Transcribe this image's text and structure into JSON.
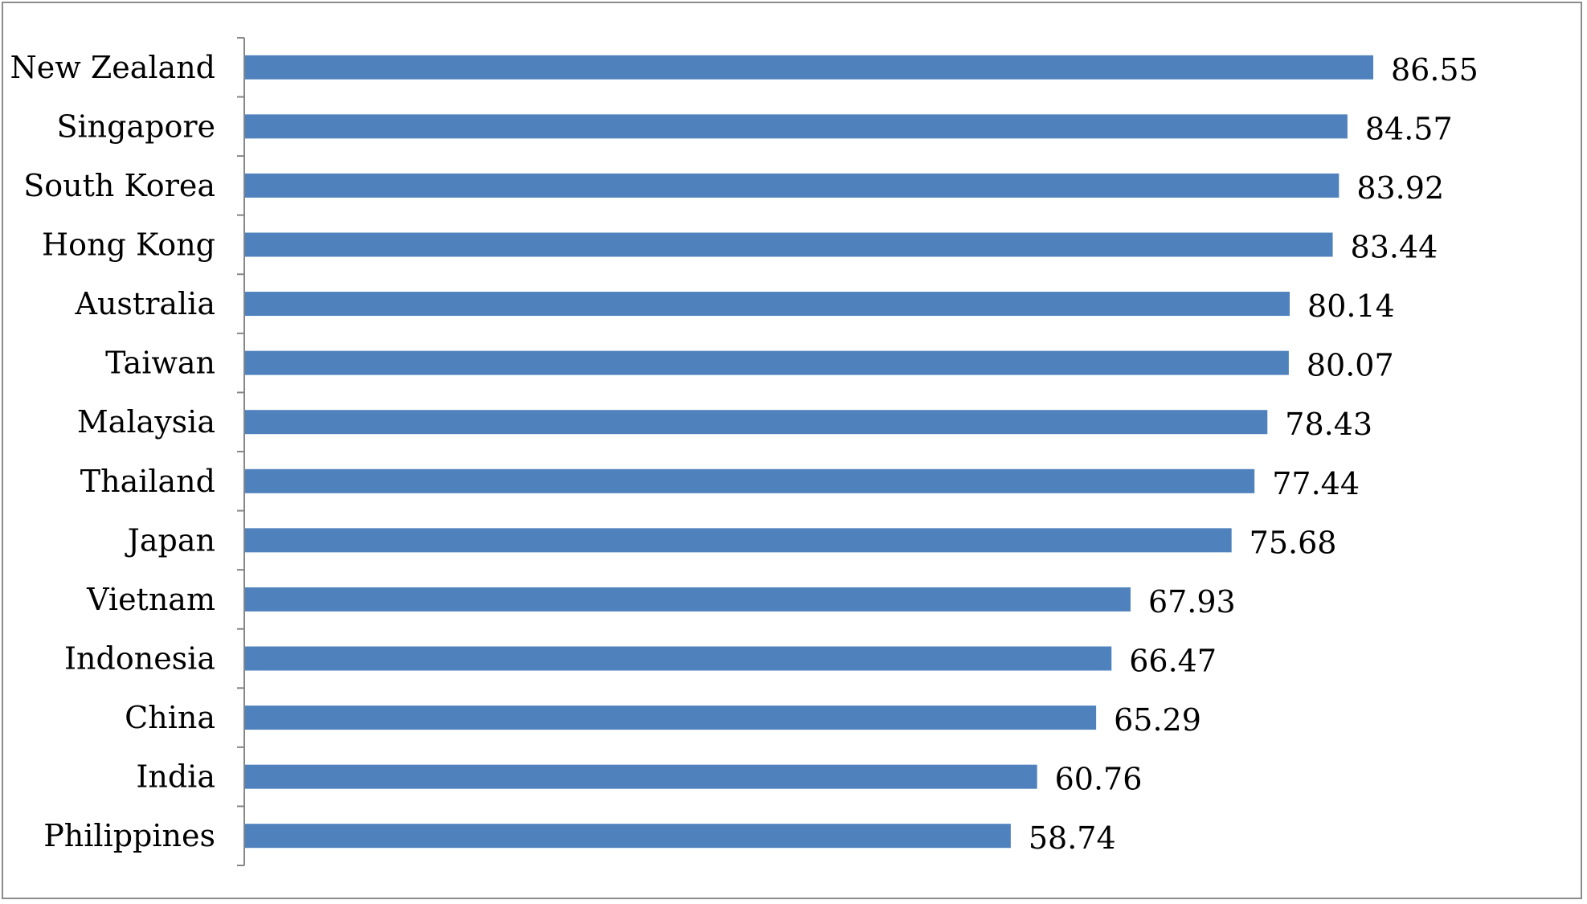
{
  "chart_data": {
    "type": "bar",
    "orientation": "horizontal",
    "title": "",
    "xlabel": "",
    "ylabel": "",
    "xlim": [
      0,
      86.55
    ],
    "grid": false,
    "legend": "none",
    "data_labels": true,
    "bar_color": "#4f81bd",
    "categories": [
      "New Zealand",
      "Singapore",
      "South Korea",
      "Hong Kong",
      "Australia",
      "Taiwan",
      "Malaysia",
      "Thailand",
      "Japan",
      "Vietnam",
      "Indonesia",
      "China",
      "India",
      "Philippines"
    ],
    "values": [
      86.55,
      84.57,
      83.92,
      83.44,
      80.14,
      80.07,
      78.43,
      77.44,
      75.68,
      67.93,
      66.47,
      65.29,
      60.76,
      58.74
    ],
    "value_labels": [
      "86.55",
      "84.57",
      "83.92",
      "83.44",
      "80.14",
      "80.07",
      "78.43",
      "77.44",
      "75.68",
      "67.93",
      "66.47",
      "65.29",
      "60.76",
      "58.74"
    ]
  }
}
